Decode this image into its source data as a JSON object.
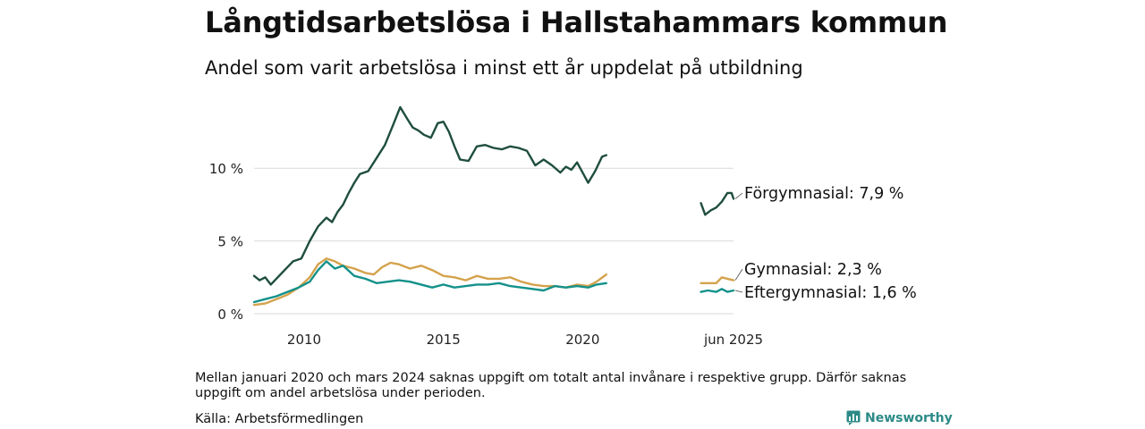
{
  "title": "Långtidsarbetslösa i Hallstahammars kommun",
  "subtitle": "Andel som varit arbetslösa i minst ett år uppdelat på utbildning",
  "note": "Mellan januari 2020 och mars 2024 saknas uppgift om totalt antal invånare i respektive grupp. Därför saknas uppgift om andel arbetslösa under perioden.",
  "source": "Källa: Arbetsförmedlingen",
  "brand": "Newsworthy",
  "colors": {
    "forgymnasial": "#1f4e3d",
    "gymnasial": "#d4a24c",
    "eftergymnasial": "#13918a",
    "grid": "#d9d9d9",
    "brand": "#2b8a87"
  },
  "chart_data": {
    "type": "line",
    "ylim": [
      0,
      14.5
    ],
    "yticks": [
      0,
      5,
      10
    ],
    "ytick_labels": [
      "0 %",
      "5 %",
      "10 %"
    ],
    "xtick_labels": [
      "2010",
      "2015",
      "2020",
      "jun 2025"
    ],
    "xtick_values": [
      2010.0,
      2015.0,
      2020.0,
      2025.42
    ],
    "grid": true,
    "series": [
      {
        "name": "Förgymnasial",
        "end_label": "Förgymnasial: 7,9 %",
        "color_key": "forgymnasial",
        "segments": [
          [
            [
              2008.2,
              2.6
            ],
            [
              2008.4,
              2.3
            ],
            [
              2008.6,
              2.5
            ],
            [
              2008.8,
              2.0
            ],
            [
              2009.0,
              2.4
            ],
            [
              2009.3,
              3.0
            ],
            [
              2009.6,
              3.6
            ],
            [
              2009.9,
              3.8
            ],
            [
              2010.2,
              5.0
            ],
            [
              2010.5,
              6.0
            ],
            [
              2010.8,
              6.6
            ],
            [
              2011.0,
              6.3
            ],
            [
              2011.2,
              7.0
            ],
            [
              2011.4,
              7.5
            ],
            [
              2011.6,
              8.3
            ],
            [
              2011.8,
              9.0
            ],
            [
              2012.0,
              9.6
            ],
            [
              2012.3,
              9.8
            ],
            [
              2012.6,
              10.7
            ],
            [
              2012.9,
              11.6
            ],
            [
              2013.2,
              13.0
            ],
            [
              2013.45,
              14.2
            ],
            [
              2013.7,
              13.4
            ],
            [
              2013.9,
              12.8
            ],
            [
              2014.1,
              12.6
            ],
            [
              2014.3,
              12.3
            ],
            [
              2014.55,
              12.1
            ],
            [
              2014.8,
              13.1
            ],
            [
              2015.0,
              13.2
            ],
            [
              2015.2,
              12.5
            ],
            [
              2015.4,
              11.5
            ],
            [
              2015.6,
              10.6
            ],
            [
              2015.9,
              10.5
            ],
            [
              2016.2,
              11.5
            ],
            [
              2016.5,
              11.6
            ],
            [
              2016.8,
              11.4
            ],
            [
              2017.1,
              11.3
            ],
            [
              2017.4,
              11.5
            ],
            [
              2017.7,
              11.4
            ],
            [
              2018.0,
              11.2
            ],
            [
              2018.3,
              10.2
            ],
            [
              2018.6,
              10.6
            ],
            [
              2018.9,
              10.2
            ],
            [
              2019.2,
              9.7
            ],
            [
              2019.4,
              10.1
            ],
            [
              2019.6,
              9.9
            ],
            [
              2019.8,
              10.4
            ],
            [
              2020.0,
              9.7
            ],
            [
              2020.2,
              9.0
            ],
            [
              2020.45,
              9.8
            ],
            [
              2020.7,
              10.8
            ],
            [
              2020.85,
              10.9
            ]
          ],
          [
            [
              2024.25,
              7.6
            ],
            [
              2024.4,
              6.8
            ],
            [
              2024.6,
              7.1
            ],
            [
              2024.8,
              7.3
            ],
            [
              2025.0,
              7.7
            ],
            [
              2025.2,
              8.3
            ],
            [
              2025.35,
              8.3
            ],
            [
              2025.42,
              7.9
            ]
          ]
        ]
      },
      {
        "name": "Gymnasial",
        "end_label": "Gymnasial: 2,3 %",
        "color_key": "gymnasial",
        "segments": [
          [
            [
              2008.2,
              0.6
            ],
            [
              2008.6,
              0.7
            ],
            [
              2009.0,
              1.0
            ],
            [
              2009.4,
              1.3
            ],
            [
              2009.8,
              1.8
            ],
            [
              2010.2,
              2.5
            ],
            [
              2010.5,
              3.4
            ],
            [
              2010.8,
              3.8
            ],
            [
              2011.1,
              3.6
            ],
            [
              2011.4,
              3.3
            ],
            [
              2011.8,
              3.1
            ],
            [
              2012.2,
              2.8
            ],
            [
              2012.5,
              2.7
            ],
            [
              2012.8,
              3.2
            ],
            [
              2013.1,
              3.5
            ],
            [
              2013.4,
              3.4
            ],
            [
              2013.8,
              3.1
            ],
            [
              2014.2,
              3.3
            ],
            [
              2014.6,
              3.0
            ],
            [
              2015.0,
              2.6
            ],
            [
              2015.4,
              2.5
            ],
            [
              2015.8,
              2.3
            ],
            [
              2016.2,
              2.6
            ],
            [
              2016.6,
              2.4
            ],
            [
              2017.0,
              2.4
            ],
            [
              2017.4,
              2.5
            ],
            [
              2017.8,
              2.2
            ],
            [
              2018.2,
              2.0
            ],
            [
              2018.6,
              1.9
            ],
            [
              2019.0,
              1.9
            ],
            [
              2019.4,
              1.8
            ],
            [
              2019.8,
              2.0
            ],
            [
              2020.2,
              1.9
            ],
            [
              2020.5,
              2.2
            ],
            [
              2020.85,
              2.7
            ]
          ],
          [
            [
              2024.25,
              2.1
            ],
            [
              2024.5,
              2.1
            ],
            [
              2024.8,
              2.1
            ],
            [
              2025.0,
              2.5
            ],
            [
              2025.2,
              2.4
            ],
            [
              2025.42,
              2.3
            ]
          ]
        ]
      },
      {
        "name": "Eftergymnasial",
        "end_label": "Eftergymnasial: 1,6 %",
        "color_key": "eftergymnasial",
        "segments": [
          [
            [
              2008.2,
              0.8
            ],
            [
              2008.6,
              1.0
            ],
            [
              2009.0,
              1.2
            ],
            [
              2009.4,
              1.5
            ],
            [
              2009.8,
              1.8
            ],
            [
              2010.2,
              2.2
            ],
            [
              2010.5,
              3.0
            ],
            [
              2010.8,
              3.6
            ],
            [
              2011.1,
              3.1
            ],
            [
              2011.4,
              3.3
            ],
            [
              2011.8,
              2.6
            ],
            [
              2012.2,
              2.4
            ],
            [
              2012.6,
              2.1
            ],
            [
              2013.0,
              2.2
            ],
            [
              2013.4,
              2.3
            ],
            [
              2013.8,
              2.2
            ],
            [
              2014.2,
              2.0
            ],
            [
              2014.6,
              1.8
            ],
            [
              2015.0,
              2.0
            ],
            [
              2015.4,
              1.8
            ],
            [
              2015.8,
              1.9
            ],
            [
              2016.2,
              2.0
            ],
            [
              2016.6,
              2.0
            ],
            [
              2017.0,
              2.1
            ],
            [
              2017.4,
              1.9
            ],
            [
              2017.8,
              1.8
            ],
            [
              2018.2,
              1.7
            ],
            [
              2018.6,
              1.6
            ],
            [
              2019.0,
              1.9
            ],
            [
              2019.4,
              1.8
            ],
            [
              2019.8,
              1.9
            ],
            [
              2020.2,
              1.8
            ],
            [
              2020.5,
              2.0
            ],
            [
              2020.85,
              2.1
            ]
          ],
          [
            [
              2024.25,
              1.5
            ],
            [
              2024.5,
              1.6
            ],
            [
              2024.8,
              1.5
            ],
            [
              2025.0,
              1.7
            ],
            [
              2025.2,
              1.5
            ],
            [
              2025.42,
              1.6
            ]
          ]
        ]
      }
    ]
  }
}
